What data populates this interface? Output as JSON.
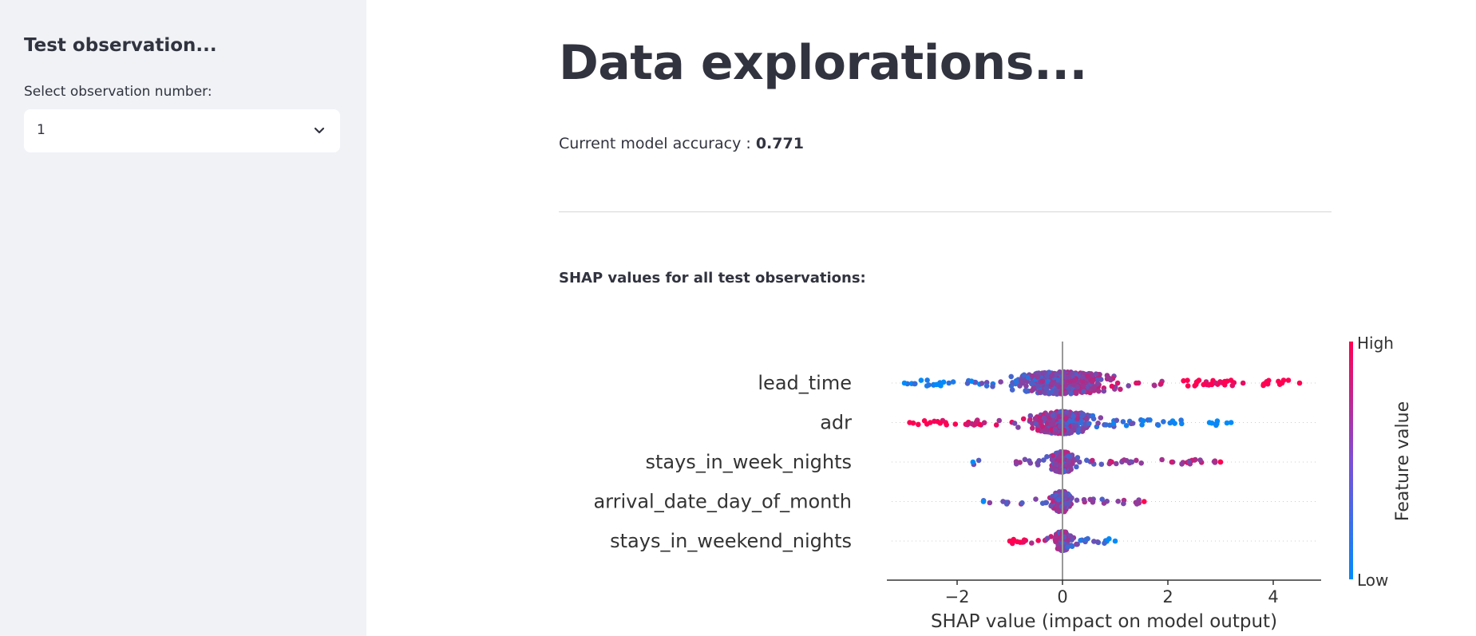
{
  "sidebar": {
    "title": "Test observation...",
    "select_label": "Select observation number:",
    "select_value": "1",
    "chevron_icon": "chevron-down-icon"
  },
  "main": {
    "title": "Data explorations...",
    "accuracy_prefix": "Current model accuracy : ",
    "accuracy_value": "0.771",
    "section_label": "SHAP values for all test observations:"
  },
  "chart_data": {
    "type": "scatter",
    "subtype": "shap-beeswarm",
    "xlabel": "SHAP value (impact on model output)",
    "xlim": [
      -3.5,
      4.8
    ],
    "xticks": [
      "−2",
      "0",
      "2",
      "4"
    ],
    "xtick_values": [
      -2,
      0,
      2,
      4
    ],
    "features": [
      "lead_time",
      "adr",
      "stays_in_week_nights",
      "arrival_date_day_of_month",
      "stays_in_weekend_nights"
    ],
    "feature_ranges": [
      {
        "feature": "lead_time",
        "min": -3.0,
        "max": 4.5
      },
      {
        "feature": "adr",
        "min": -2.9,
        "max": 3.2
      },
      {
        "feature": "stays_in_week_nights",
        "min": -1.7,
        "max": 3.0
      },
      {
        "feature": "arrival_date_day_of_month",
        "min": -1.5,
        "max": 1.55
      },
      {
        "feature": "stays_in_weekend_nights",
        "min": -1.0,
        "max": 1.0
      }
    ],
    "colorbar": {
      "label": "Feature value",
      "high_label": "High",
      "low_label": "Low",
      "high_color": "#ff0052",
      "low_color": "#008bfb"
    }
  },
  "colors": {
    "sidebar_bg": "#f0f2f6",
    "text": "#31333f",
    "high": "#ff0052",
    "low": "#008bfb"
  }
}
